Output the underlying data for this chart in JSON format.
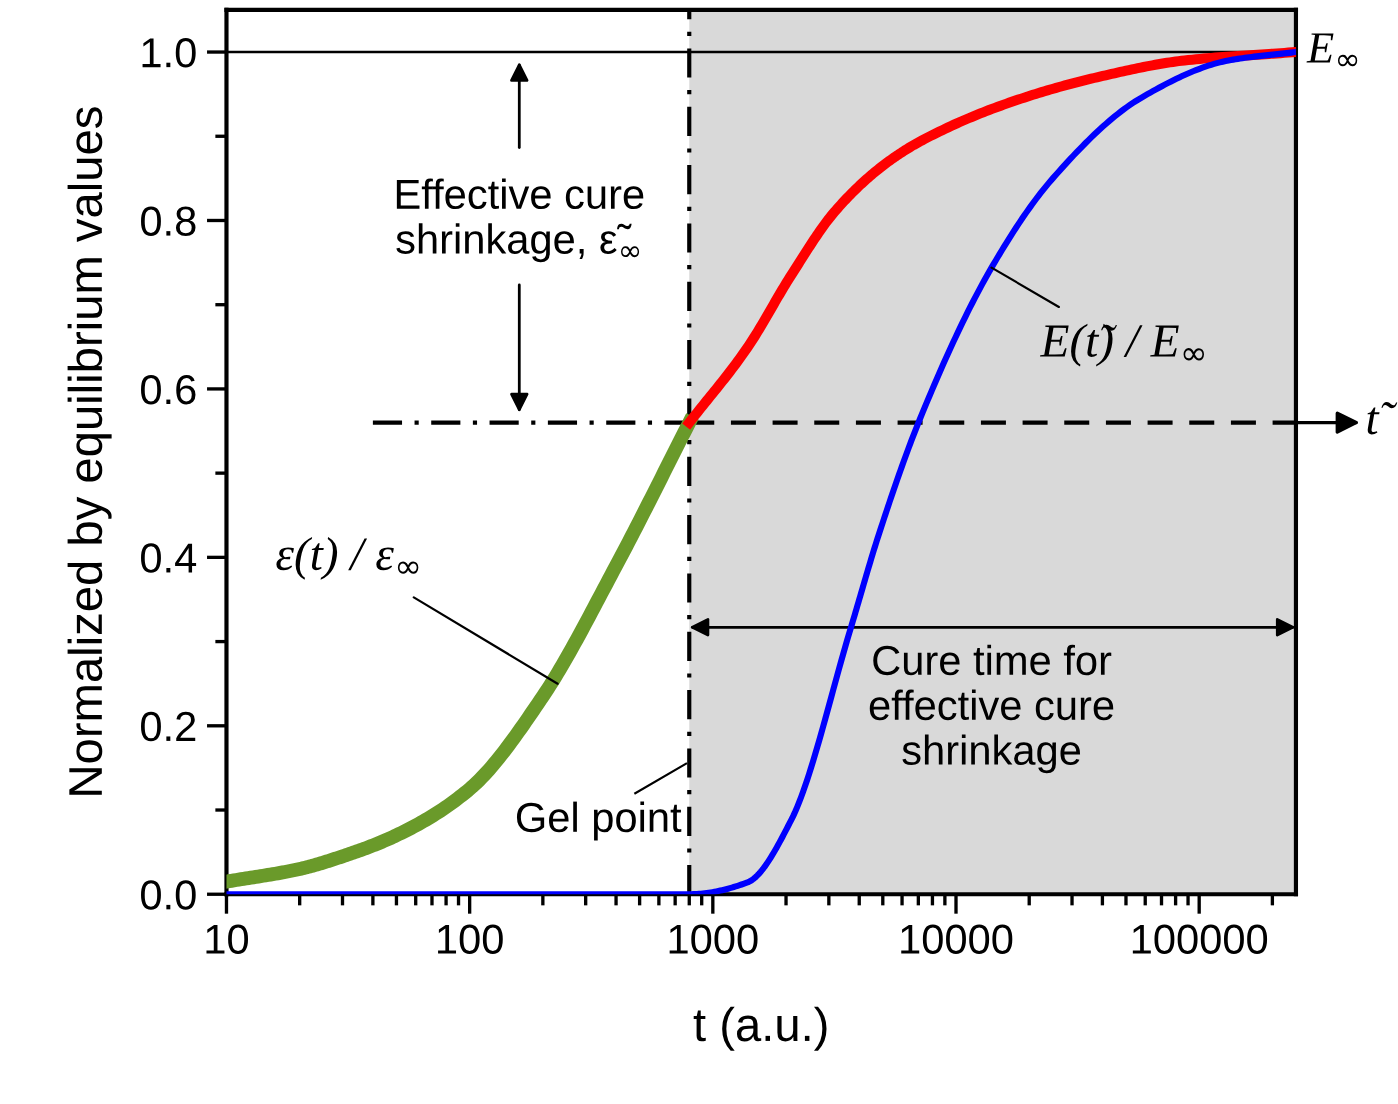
{
  "chart_data": {
    "type": "line",
    "xlabel": "t (a.u.)",
    "ylabel": "Normalized by equilibrium values",
    "log": "x",
    "xlim": [
      10,
      250000
    ],
    "xticks": [
      10,
      100,
      1000,
      10000,
      100000
    ],
    "ylim": [
      0,
      1.05
    ],
    "yticks": [
      {
        "value": 0,
        "label": "0.0"
      },
      {
        "value": 0.2,
        "label": "0.2"
      },
      {
        "value": 0.4,
        "label": "0.4"
      },
      {
        "value": 0.6,
        "label": "0.6"
      },
      {
        "value": 0.8,
        "label": "0.8"
      },
      {
        "value": 1.0,
        "label": "1.0"
      }
    ],
    "grid": false,
    "legend": false,
    "marker": "none",
    "series": [
      {
        "color": "#6a9a2a",
        "x": [
          10,
          20,
          30,
          50,
          100,
          200,
          400,
          800
        ],
        "values": [
          0.015,
          0.03,
          0.045,
          0.07,
          0.125,
          0.235,
          0.39,
          0.56
        ]
      },
      {
        "color": "#ff0000",
        "x": [
          800,
          1387,
          2100,
          3160,
          5000,
          7240,
          16600,
          38000,
          87000,
          250000
        ],
        "values": [
          0.56,
          0.649,
          0.735,
          0.81,
          0.865,
          0.895,
          0.94,
          0.97,
          0.99,
          1.0
        ]
      },
      {
        "color": "#0000ff",
        "x": [
          10,
          800,
          1387,
          2100,
          3700,
          4800,
          7100,
          14000,
          25000,
          58000,
          132000,
          250000
        ],
        "values": [
          0,
          0,
          0.014,
          0.088,
          0.317,
          0.426,
          0.564,
          0.744,
          0.85,
          0.946,
          0.99,
          1.0
        ]
      }
    ],
    "ref_lines": [
      {
        "axis": "x",
        "value": 800,
        "line_style": "dashdot",
        "label": "Gel point"
      },
      {
        "axis": "y",
        "value": 1.0,
        "line_style": "solid",
        "label": "E$_{∞}$"
      },
      {
        "axis": "y",
        "value": 0.56,
        "line_style": "dashed",
        "label": "t̃"
      }
    ],
    "bands": [
      {
        "axis": "x",
        "from": 800,
        "to": 250000,
        "color": "#d9d9d9"
      }
    ],
    "annotations": [
      "Effective cure\nshrinkage, ε̃$_{∞}$",
      "Cure time for\neffective cure\nshrinkage",
      {
        "text": "ε(t) / ε$_{∞}$",
        "x": 230,
        "y": 0.25
      },
      {
        "text": "E(t̃) / E$_{∞}$",
        "x": 14000,
        "y": 0.744
      }
    ]
  }
}
